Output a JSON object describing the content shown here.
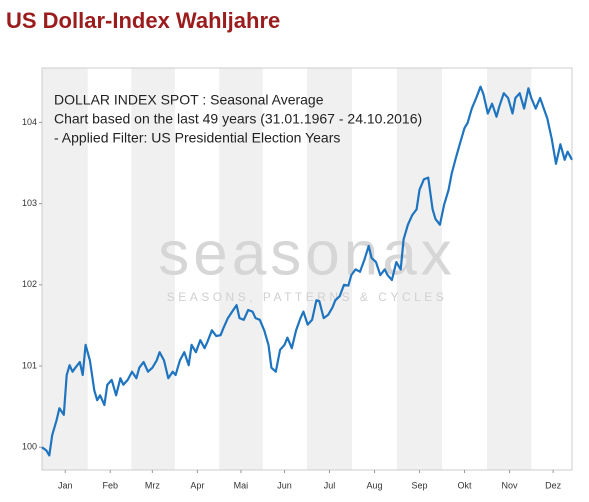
{
  "chart_data": {
    "type": "line",
    "title": "US Dollar-Index Wahljahre",
    "annotations": [
      "DOLLAR INDEX SPOT : Seasonal Average",
      "Chart based on the last 49 years (31.01.1967 - 24.10.2016)",
      " - Applied Filter: US Presidential Election Years"
    ],
    "watermark": [
      "seasonax",
      "SEASONS, PATTERNS & CYCLES"
    ],
    "xlim": [
      0,
      365
    ],
    "xticks": [
      {
        "value": 16,
        "label": "Jan"
      },
      {
        "value": 47,
        "label": "Feb"
      },
      {
        "value": 76,
        "label": "Mrz"
      },
      {
        "value": 107,
        "label": "Apr"
      },
      {
        "value": 137,
        "label": "Mai"
      },
      {
        "value": 167,
        "label": "Jun"
      },
      {
        "value": 198,
        "label": "Jul"
      },
      {
        "value": 229,
        "label": "Aug"
      },
      {
        "value": 260,
        "label": "Sep"
      },
      {
        "value": 291,
        "label": "Okt"
      },
      {
        "value": 322,
        "label": "Nov"
      },
      {
        "value": 352,
        "label": "Dez"
      }
    ],
    "ylim": [
      99.72,
      104.67
    ],
    "yticks": [
      100,
      101,
      102,
      103,
      104
    ],
    "x": [
      0,
      3,
      5,
      7,
      10,
      12,
      15,
      17,
      19,
      21,
      23,
      26,
      28,
      30,
      33,
      36,
      38,
      40,
      43,
      45,
      48,
      51,
      54,
      56,
      59,
      62,
      65,
      67,
      70,
      73,
      76,
      79,
      81,
      84,
      87,
      90,
      92,
      95,
      98,
      101,
      103,
      106,
      109,
      112,
      114,
      117,
      120,
      123,
      125,
      128,
      131,
      134,
      136,
      139,
      142,
      145,
      147,
      150,
      153,
      156,
      158,
      161,
      164,
      167,
      169,
      172,
      175,
      178,
      180,
      183,
      186,
      189,
      191,
      194,
      197,
      200,
      202,
      205,
      208,
      211,
      213,
      216,
      219,
      222,
      225,
      227,
      230,
      233,
      236,
      238,
      241,
      244,
      247,
      249,
      252,
      255,
      258,
      260,
      263,
      266,
      269,
      271,
      274,
      277,
      280,
      282,
      285,
      288,
      291,
      293,
      296,
      299,
      302,
      304,
      307,
      310,
      313,
      315,
      318,
      321,
      324,
      326,
      329,
      332,
      335,
      337,
      340,
      343,
      346,
      348,
      351,
      354,
      357,
      360,
      362,
      365
    ],
    "series": [
      {
        "name": "DOLLAR INDEX SPOT",
        "color": "#1f74c0",
        "values": [
          100.0,
          99.96,
          99.9,
          100.15,
          100.33,
          100.48,
          100.4,
          100.89,
          101.01,
          100.93,
          100.98,
          101.05,
          100.89,
          101.26,
          101.07,
          100.7,
          100.58,
          100.64,
          100.52,
          100.77,
          100.83,
          100.64,
          100.85,
          100.77,
          100.83,
          100.93,
          100.85,
          100.98,
          101.05,
          100.93,
          100.98,
          101.07,
          101.17,
          101.07,
          100.85,
          100.93,
          100.89,
          101.07,
          101.17,
          101.01,
          101.26,
          101.17,
          101.32,
          101.22,
          101.3,
          101.44,
          101.37,
          101.38,
          101.47,
          101.59,
          101.67,
          101.75,
          101.59,
          101.57,
          101.69,
          101.67,
          101.59,
          101.57,
          101.44,
          101.26,
          100.98,
          100.93,
          101.2,
          101.26,
          101.35,
          101.22,
          101.44,
          101.59,
          101.67,
          101.51,
          101.57,
          101.81,
          101.8,
          101.59,
          101.63,
          101.72,
          101.81,
          101.86,
          102.0,
          101.99,
          102.12,
          102.19,
          102.16,
          102.31,
          102.48,
          102.33,
          102.28,
          102.12,
          102.19,
          102.12,
          102.06,
          102.28,
          102.19,
          102.56,
          102.74,
          102.86,
          102.93,
          103.17,
          103.3,
          103.32,
          102.93,
          102.81,
          102.74,
          102.99,
          103.17,
          103.36,
          103.56,
          103.75,
          103.93,
          103.99,
          104.17,
          104.3,
          104.44,
          104.35,
          104.11,
          104.23,
          104.07,
          104.2,
          104.36,
          104.3,
          104.11,
          104.3,
          104.36,
          104.17,
          104.42,
          104.3,
          104.17,
          104.3,
          104.15,
          104.05,
          103.8,
          103.49,
          103.73,
          103.54,
          103.64,
          103.54
        ]
      }
    ],
    "bands": true
  }
}
